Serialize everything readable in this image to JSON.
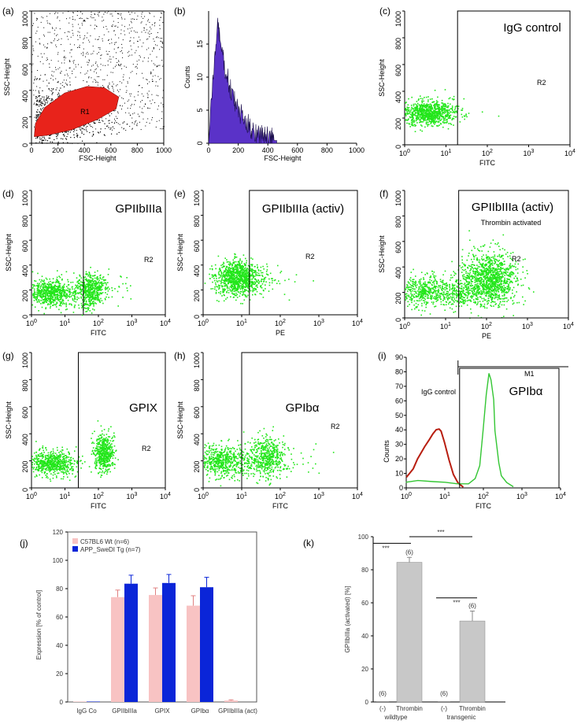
{
  "chart_data": [
    {
      "id": "a",
      "type": "scatter",
      "panel_label": "(a)",
      "xlabel": "FSC-Height",
      "ylabel": "SSC-Height",
      "xticks": [
        "0",
        "200",
        "400",
        "600",
        "800",
        "1000"
      ],
      "yticks": [
        "0",
        "200",
        "400",
        "600",
        "800",
        "1000"
      ],
      "xlim": [
        0,
        1000
      ],
      "ylim": [
        0,
        1000
      ],
      "region_label": "R1",
      "colors": {
        "background_events": "#000000",
        "gated_events": "#e8231b"
      }
    },
    {
      "id": "b",
      "type": "histogram",
      "panel_label": "(b)",
      "xlabel": "FSC-Height",
      "ylabel": "Counts",
      "xticks": [
        "0",
        "200",
        "400",
        "600",
        "800",
        "1000"
      ],
      "yticks": [
        "0",
        "5",
        "10",
        "15"
      ],
      "xlim": [
        0,
        1000
      ],
      "ylim": [
        0,
        20
      ],
      "color": "#5a32c8"
    },
    {
      "id": "c",
      "type": "scatter",
      "panel_label": "(c)",
      "xlabel": "FITC",
      "ylabel": "SSC-Height",
      "xscale": "log",
      "xticks": [
        "10^0",
        "10^1",
        "10^2",
        "10^3",
        "10^4"
      ],
      "yticks": [
        "0",
        "200",
        "400",
        "600",
        "800",
        "1000"
      ],
      "annotation": "IgG control",
      "region_label": "R2",
      "color": "#22e61a"
    },
    {
      "id": "d",
      "type": "scatter",
      "panel_label": "(d)",
      "xlabel": "FITC",
      "ylabel": "SSC-Height",
      "xscale": "log",
      "xticks": [
        "10^0",
        "10^1",
        "10^2",
        "10^3",
        "10^4"
      ],
      "yticks": [
        "0",
        "200",
        "400",
        "600",
        "800",
        "1000"
      ],
      "annotation": "GPIIbIIIa",
      "region_label": "R2",
      "color": "#22e61a"
    },
    {
      "id": "e",
      "type": "scatter",
      "panel_label": "(e)",
      "xlabel": "PE",
      "ylabel": "SSC-Height",
      "xscale": "log",
      "xticks": [
        "10^0",
        "10^1",
        "10^2",
        "10^3",
        "10^4"
      ],
      "yticks": [
        "0",
        "200",
        "400",
        "600",
        "800",
        "1000"
      ],
      "annotation": "GPIIbIIIa (activ)",
      "region_label": "R2",
      "color": "#22e61a"
    },
    {
      "id": "f",
      "type": "scatter",
      "panel_label": "(f)",
      "xlabel": "PE",
      "ylabel": "SSC-Height",
      "xscale": "log",
      "xticks": [
        "10^0",
        "10^1",
        "10^2",
        "10^3",
        "10^4"
      ],
      "yticks": [
        "0",
        "200",
        "400",
        "600",
        "800",
        "1000"
      ],
      "annotation": "GPIIbIIIa (activ)",
      "annotation2": "Thrombin activated",
      "annotation2_color": "#c0281c",
      "region_label": "R2",
      "color": "#22e61a"
    },
    {
      "id": "g",
      "type": "scatter",
      "panel_label": "(g)",
      "xlabel": "FITC",
      "ylabel": "SSC-Height",
      "xscale": "log",
      "xticks": [
        "10^0",
        "10^1",
        "10^2",
        "10^3",
        "10^4"
      ],
      "yticks": [
        "0",
        "200",
        "400",
        "600",
        "800",
        "1000"
      ],
      "annotation": "GPIX",
      "region_label": "R2",
      "color": "#22e61a"
    },
    {
      "id": "h",
      "type": "scatter",
      "panel_label": "(h)",
      "xlabel": "FITC",
      "ylabel": "SSC-Height",
      "xscale": "log",
      "xticks": [
        "10^0",
        "10^1",
        "10^2",
        "10^3",
        "10^4"
      ],
      "yticks": [
        "0",
        "200",
        "400",
        "600",
        "800",
        "1000"
      ],
      "annotation": "GPIbα",
      "region_label": "R2",
      "color": "#22e61a"
    },
    {
      "id": "i",
      "type": "line",
      "panel_label": "(i)",
      "xlabel": "FITC",
      "ylabel": "Counts",
      "xscale": "log",
      "xticks": [
        "10^0",
        "10^1",
        "10^2",
        "10^3",
        "10^4"
      ],
      "yticks": [
        "0",
        "10",
        "20",
        "30",
        "40",
        "50",
        "60",
        "70",
        "80",
        "90"
      ],
      "ylim": [
        0,
        90
      ],
      "marker_label": "M1",
      "series": [
        {
          "name": "IgG control",
          "color": "#b81e10",
          "x": [
            1,
            1.5,
            2,
            3,
            4,
            5,
            6,
            7,
            8,
            10,
            13,
            17,
            22,
            30
          ],
          "y": [
            8,
            14,
            20,
            28,
            34,
            38,
            40,
            41,
            39,
            32,
            20,
            9,
            3,
            1
          ]
        },
        {
          "name": "GPIbα",
          "color": "#33c633",
          "x": [
            1,
            2,
            5,
            10,
            20,
            40,
            60,
            80,
            100,
            120,
            140,
            160,
            180,
            200,
            250,
            300,
            400,
            600
          ],
          "y": [
            4,
            5,
            4,
            3,
            2,
            3,
            6,
            15,
            40,
            65,
            78,
            74,
            60,
            40,
            18,
            8,
            3,
            1
          ]
        }
      ]
    },
    {
      "id": "j",
      "type": "bar",
      "panel_label": "(j)",
      "ylabel": "Expression [% of control]",
      "ylim": [
        0,
        120
      ],
      "yticks": [
        "0",
        "20",
        "40",
        "60",
        "80",
        "100",
        "120"
      ],
      "categories": [
        "IgG Co",
        "GPIIbIIIa",
        "GPIX",
        "GPIbα",
        "GPIIbIIIa (act)"
      ],
      "series": [
        {
          "name": "C57BL6 Wt (n=6)",
          "color": "#f8c3c3",
          "values": [
            0.3,
            74,
            75.5,
            68,
            1
          ],
          "errors": [
            0,
            5,
            5,
            7,
            0.5
          ]
        },
        {
          "name": "APP_SweDI Tg (n=7)",
          "color": "#0a25d8",
          "values": [
            0.3,
            83.5,
            84,
            81,
            0
          ],
          "errors": [
            0,
            6,
            6,
            7,
            0
          ]
        }
      ]
    },
    {
      "id": "k",
      "type": "bar",
      "panel_label": "(k)",
      "ylabel": "GPIIbIIIa (activated) [%]",
      "ylim": [
        0,
        100
      ],
      "yticks": [
        "0",
        "20",
        "40",
        "60",
        "80",
        "100"
      ],
      "categories": [
        "(-)",
        "Thrombin",
        "(-)",
        "Thrombin"
      ],
      "groups": [
        "wildtype",
        "transgenic"
      ],
      "values": [
        0.3,
        84.5,
        0.3,
        49
      ],
      "errors": [
        0,
        3,
        0,
        6
      ],
      "n_labels": [
        "(6)",
        "(6)",
        "(6)",
        "(6)"
      ],
      "significance": [
        "***",
        "***",
        "***"
      ],
      "color": "#c8c8c8"
    }
  ]
}
